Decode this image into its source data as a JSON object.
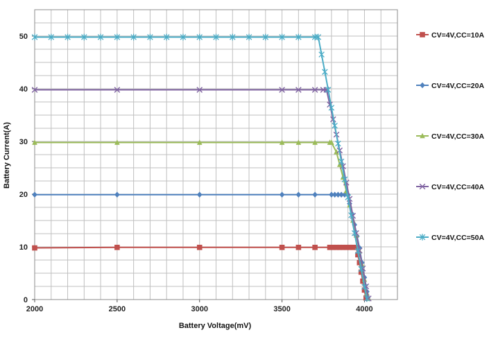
{
  "chart_data": {
    "type": "line",
    "title": "",
    "xlabel": "Battery Voltage(mV)",
    "ylabel": "Battery  Current(A)",
    "xlim": [
      2000,
      4200
    ],
    "ylim": [
      0,
      55
    ],
    "xticks": [
      2000,
      2500,
      3000,
      3500,
      4000
    ],
    "yticks": [
      0,
      10,
      20,
      30,
      40,
      50
    ],
    "grid": true,
    "legend_position": "right",
    "series": [
      {
        "name": "CV=4V,CC=10A",
        "color": "#c0504d",
        "marker": "square",
        "points": [
          [
            2000,
            9.8
          ],
          [
            2500,
            9.9
          ],
          [
            3000,
            9.9
          ],
          [
            3500,
            9.9
          ],
          [
            3600,
            9.9
          ],
          [
            3700,
            9.9
          ],
          [
            3790,
            9.9
          ],
          [
            3810,
            9.9
          ],
          [
            3830,
            9.9
          ],
          [
            3850,
            9.9
          ],
          [
            3870,
            9.9
          ],
          [
            3890,
            9.9
          ],
          [
            3910,
            9.9
          ],
          [
            3930,
            9.9
          ],
          [
            3950,
            9.9
          ],
          [
            3960,
            8.5
          ],
          [
            3970,
            7.0
          ],
          [
            3980,
            5.2
          ],
          [
            3990,
            3.5
          ],
          [
            4000,
            1.8
          ],
          [
            4010,
            0.3
          ]
        ]
      },
      {
        "name": "CV=4V,CC=20A",
        "color": "#4f81bd",
        "marker": "diamond",
        "points": [
          [
            2000,
            19.9
          ],
          [
            2500,
            19.9
          ],
          [
            3000,
            19.9
          ],
          [
            3500,
            19.9
          ],
          [
            3600,
            19.9
          ],
          [
            3700,
            19.9
          ],
          [
            3800,
            19.9
          ],
          [
            3820,
            19.9
          ],
          [
            3840,
            19.9
          ],
          [
            3860,
            19.9
          ],
          [
            3880,
            19.9
          ],
          [
            3900,
            19.9
          ],
          [
            3910,
            18.2
          ],
          [
            3925,
            16.2
          ],
          [
            3940,
            14.2
          ],
          [
            3955,
            12.0
          ],
          [
            3970,
            9.8
          ],
          [
            3985,
            7.0
          ],
          [
            4000,
            4.2
          ],
          [
            4015,
            1.5
          ],
          [
            4020,
            0.3
          ]
        ]
      },
      {
        "name": "CV=4V,CC=30A",
        "color": "#9bbb59",
        "marker": "triangle",
        "points": [
          [
            2000,
            29.8
          ],
          [
            2500,
            29.8
          ],
          [
            3000,
            29.8
          ],
          [
            3500,
            29.8
          ],
          [
            3600,
            29.8
          ],
          [
            3700,
            29.8
          ],
          [
            3790,
            29.8
          ],
          [
            3800,
            29.8
          ],
          [
            3830,
            28.0
          ],
          [
            3850,
            25.6
          ],
          [
            3870,
            23.2
          ],
          [
            3890,
            20.6
          ],
          [
            3910,
            17.9
          ],
          [
            3930,
            15.0
          ],
          [
            3950,
            12.2
          ],
          [
            3970,
            9.2
          ],
          [
            3985,
            6.6
          ],
          [
            4000,
            3.8
          ],
          [
            4015,
            1.2
          ],
          [
            4025,
            0.2
          ]
        ]
      },
      {
        "name": "CV=4V,CC=40A",
        "color": "#8064a2",
        "marker": "x",
        "points": [
          [
            2000,
            39.8
          ],
          [
            2500,
            39.8
          ],
          [
            3000,
            39.8
          ],
          [
            3500,
            39.8
          ],
          [
            3600,
            39.8
          ],
          [
            3700,
            39.8
          ],
          [
            3750,
            39.8
          ],
          [
            3770,
            39.8
          ],
          [
            3790,
            37.0
          ],
          [
            3810,
            34.2
          ],
          [
            3830,
            31.3
          ],
          [
            3850,
            28.3
          ],
          [
            3870,
            25.3
          ],
          [
            3890,
            22.2
          ],
          [
            3910,
            19.1
          ],
          [
            3930,
            15.9
          ],
          [
            3950,
            12.6
          ],
          [
            3970,
            9.3
          ],
          [
            3990,
            5.9
          ],
          [
            4010,
            2.5
          ],
          [
            4025,
            0.2
          ]
        ]
      },
      {
        "name": "CV=4V,CC=50A",
        "color": "#4bacc6",
        "marker": "asterisk",
        "points": [
          [
            2000,
            49.8
          ],
          [
            2100,
            49.8
          ],
          [
            2200,
            49.8
          ],
          [
            2300,
            49.8
          ],
          [
            2400,
            49.8
          ],
          [
            2500,
            49.8
          ],
          [
            2600,
            49.8
          ],
          [
            2700,
            49.8
          ],
          [
            2800,
            49.8
          ],
          [
            2900,
            49.8
          ],
          [
            3000,
            49.8
          ],
          [
            3100,
            49.8
          ],
          [
            3200,
            49.8
          ],
          [
            3300,
            49.8
          ],
          [
            3400,
            49.8
          ],
          [
            3500,
            49.8
          ],
          [
            3600,
            49.8
          ],
          [
            3700,
            49.8
          ],
          [
            3720,
            49.8
          ],
          [
            3740,
            46.5
          ],
          [
            3760,
            43.2
          ],
          [
            3780,
            39.8
          ],
          [
            3800,
            36.4
          ],
          [
            3820,
            33.0
          ],
          [
            3840,
            29.6
          ],
          [
            3860,
            26.2
          ],
          [
            3880,
            22.8
          ],
          [
            3900,
            19.4
          ],
          [
            3920,
            16.0
          ],
          [
            3940,
            12.6
          ],
          [
            3960,
            9.2
          ],
          [
            3980,
            5.8
          ],
          [
            4000,
            2.4
          ],
          [
            4015,
            0.2
          ]
        ]
      }
    ]
  }
}
